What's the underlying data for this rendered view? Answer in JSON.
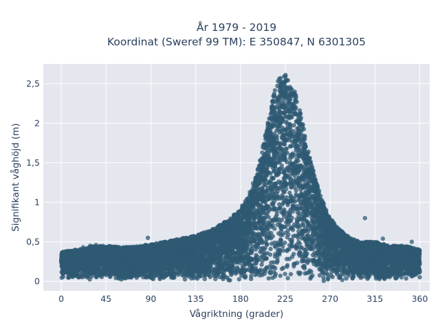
{
  "chart_data": {
    "type": "scatter",
    "title_line1": "År 1979 - 2019",
    "title_line2": "Koordinat (Sweref 99 TM): E 350847, N 6301305",
    "xlabel": "Vågriktning (grader)",
    "ylabel": "Signifikant våghöjd (m)",
    "xlim": [
      -18,
      370
    ],
    "ylim": [
      -0.12,
      2.75
    ],
    "x_ticks": [
      0,
      45,
      90,
      135,
      180,
      225,
      270,
      315,
      360
    ],
    "x_tick_labels": [
      "0",
      "45",
      "90",
      "135",
      "180",
      "225",
      "270",
      "315",
      "360"
    ],
    "y_ticks": [
      0,
      0.5,
      1,
      1.5,
      2,
      2.5
    ],
    "y_tick_labels": [
      "0",
      "0,5",
      "1",
      "1,5",
      "2",
      "2,5"
    ],
    "grid": true,
    "marker_color": "#2f5a73",
    "plot_background": "#e5e7ef",
    "envelope": {
      "x": [
        0,
        10,
        20,
        30,
        45,
        60,
        75,
        90,
        105,
        120,
        135,
        150,
        160,
        170,
        180,
        190,
        198,
        205,
        210,
        215,
        220,
        225,
        230,
        235,
        240,
        245,
        250,
        255,
        260,
        265,
        270,
        280,
        290,
        300,
        315,
        330,
        345,
        360
      ],
      "y_max": [
        0.37,
        0.39,
        0.41,
        0.44,
        0.45,
        0.43,
        0.44,
        0.47,
        0.5,
        0.54,
        0.58,
        0.65,
        0.72,
        0.8,
        0.92,
        1.15,
        1.45,
        1.85,
        2.2,
        2.45,
        2.6,
        2.62,
        2.5,
        2.4,
        2.15,
        1.85,
        1.55,
        1.3,
        1.1,
        0.95,
        0.8,
        0.65,
        0.55,
        0.5,
        0.5,
        0.45,
        0.45,
        0.4
      ],
      "y_min": [
        0.03,
        0.02,
        0.02,
        0.02,
        0.02,
        0.02,
        0.02,
        0.02,
        0.02,
        0.02,
        0.02,
        0.02,
        0.02,
        0.01,
        0.01,
        0.0,
        0.0,
        0.0,
        0.0,
        0.0,
        0.0,
        0.0,
        0.0,
        0.0,
        0.0,
        0.0,
        0.0,
        0.0,
        0.0,
        0.0,
        0.01,
        0.01,
        0.02,
        0.02,
        0.02,
        0.02,
        0.03,
        0.04
      ]
    },
    "outliers": [
      {
        "x": 305,
        "y": 0.8
      },
      {
        "x": 87,
        "y": 0.55
      },
      {
        "x": 352,
        "y": 0.5
      },
      {
        "x": 323,
        "y": 0.54
      },
      {
        "x": 29,
        "y": 0.45
      },
      {
        "x": 35,
        "y": 0.46
      },
      {
        "x": 22,
        "y": 0.43
      },
      {
        "x": 5,
        "y": 0.38
      }
    ]
  }
}
